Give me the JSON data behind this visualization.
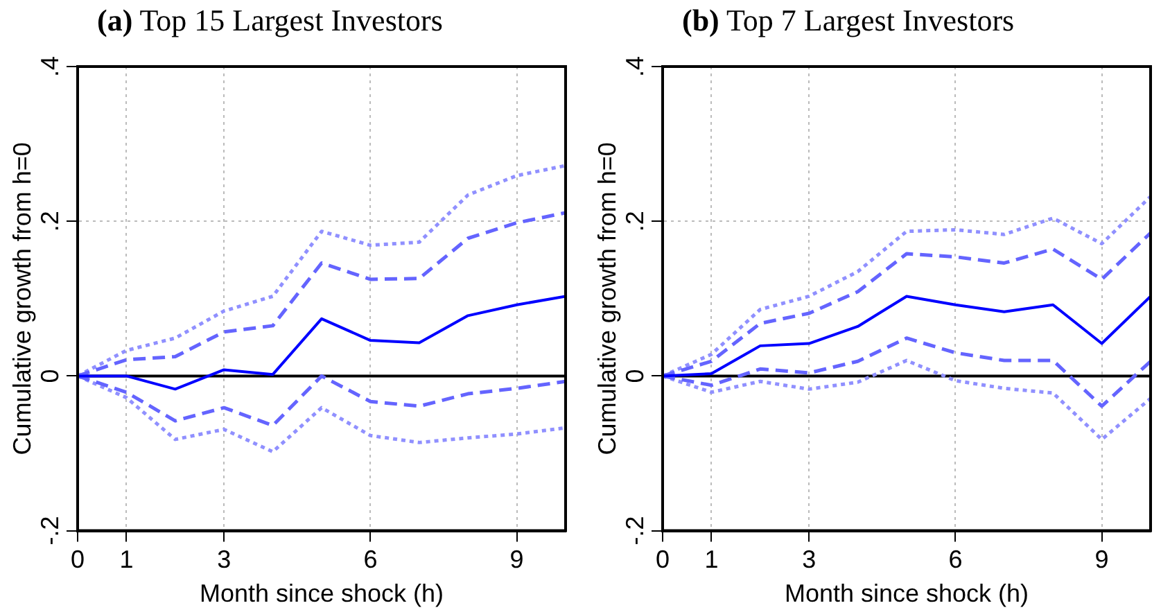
{
  "chart_data": [
    {
      "type": "line",
      "title": "(a) Top 15 Largest Investors",
      "xlabel": "Month since shock (h)",
      "ylabel": "Cumulative growth from h=0",
      "x": [
        0,
        1,
        2,
        3,
        4,
        5,
        6,
        7,
        8,
        9,
        10
      ],
      "xlim": [
        0,
        10
      ],
      "xticks": [
        0,
        1,
        3,
        6,
        9
      ],
      "ylim": [
        -0.2,
        0.4
      ],
      "yticks": [
        {
          "value": -0.2,
          "label": "-.2"
        },
        {
          "value": 0,
          "label": "0"
        },
        {
          "value": 0.2,
          "label": ".2"
        },
        {
          "value": 0.4,
          "label": ".4"
        }
      ],
      "grid": true,
      "legend": false,
      "marker": "none",
      "ref_lines": [
        {
          "axis": "y",
          "value": 0,
          "color": "#000000",
          "line_style": "solid"
        }
      ],
      "series": [
        {
          "color": "#0000ff",
          "line_style": "solid",
          "values": [
            0,
            0,
            -0.017,
            0.008,
            0.002,
            0.074,
            0.046,
            0.043,
            0.078,
            0.092,
            0.103
          ]
        },
        {
          "color": "#6464ff",
          "line_style": "dashed",
          "values": [
            0,
            0.021,
            0.025,
            0.057,
            0.065,
            0.146,
            0.125,
            0.126,
            0.178,
            0.198,
            0.211
          ]
        },
        {
          "color": "#6464ff",
          "line_style": "dashed",
          "values": [
            0,
            -0.021,
            -0.058,
            -0.041,
            -0.064,
            0,
            -0.033,
            -0.039,
            -0.023,
            -0.016,
            -0.007
          ]
        },
        {
          "color": "#9090ff",
          "line_style": "dotted",
          "values": [
            0,
            0.033,
            0.049,
            0.084,
            0.103,
            0.187,
            0.169,
            0.173,
            0.234,
            0.259,
            0.272
          ]
        },
        {
          "color": "#9090ff",
          "line_style": "dotted",
          "values": [
            0,
            -0.028,
            -0.082,
            -0.069,
            -0.098,
            -0.041,
            -0.077,
            -0.086,
            -0.08,
            -0.075,
            -0.067
          ]
        }
      ]
    },
    {
      "type": "line",
      "title": "(b) Top 7 Largest Investors",
      "xlabel": "Month since shock (h)",
      "ylabel": "Cumulative growth from h=0",
      "x": [
        0,
        1,
        2,
        3,
        4,
        5,
        6,
        7,
        8,
        9,
        10
      ],
      "xlim": [
        0,
        10
      ],
      "xticks": [
        0,
        1,
        3,
        6,
        9
      ],
      "ylim": [
        -0.2,
        0.4
      ],
      "yticks": [
        {
          "value": -0.2,
          "label": "-.2"
        },
        {
          "value": 0,
          "label": "0"
        },
        {
          "value": 0.2,
          "label": ".2"
        },
        {
          "value": 0.4,
          "label": ".4"
        }
      ],
      "grid": true,
      "legend": false,
      "marker": "none",
      "ref_lines": [
        {
          "axis": "y",
          "value": 0,
          "color": "#000000",
          "line_style": "solid"
        }
      ],
      "series": [
        {
          "color": "#0000ff",
          "line_style": "solid",
          "values": [
            0,
            0.003,
            0.039,
            0.042,
            0.064,
            0.103,
            0.092,
            0.083,
            0.092,
            0.042,
            0.103
          ]
        },
        {
          "color": "#6464ff",
          "line_style": "dashed",
          "values": [
            0,
            0.019,
            0.068,
            0.081,
            0.109,
            0.158,
            0.154,
            0.146,
            0.164,
            0.125,
            0.185
          ]
        },
        {
          "color": "#6464ff",
          "line_style": "dashed",
          "values": [
            0,
            -0.012,
            0.009,
            0.004,
            0.019,
            0.049,
            0.03,
            0.02,
            0.02,
            -0.039,
            0.019
          ]
        },
        {
          "color": "#9090ff",
          "line_style": "dotted",
          "values": [
            0,
            0.028,
            0.086,
            0.103,
            0.135,
            0.187,
            0.189,
            0.183,
            0.204,
            0.171,
            0.232
          ]
        },
        {
          "color": "#9090ff",
          "line_style": "dotted",
          "values": [
            0,
            -0.021,
            -0.007,
            -0.017,
            -0.008,
            0.02,
            -0.006,
            -0.016,
            -0.022,
            -0.082,
            -0.029
          ]
        }
      ]
    }
  ]
}
